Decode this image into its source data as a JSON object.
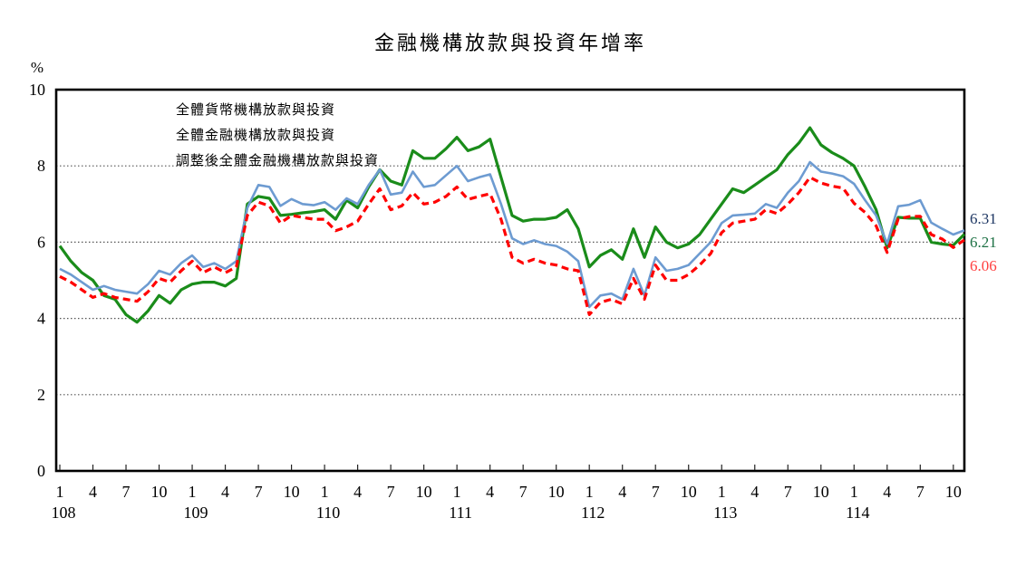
{
  "title": "金融機構放款與投資年增率",
  "y_axis": {
    "unit_label": "%",
    "tick_labels": [
      "10",
      "8",
      "6",
      "4",
      "2",
      "0"
    ],
    "min": 0,
    "max": 10,
    "gridlines_at": [
      2,
      4,
      6,
      8
    ]
  },
  "x_axis": {
    "month_tick_labels": [
      "1",
      "4",
      "7",
      "10"
    ],
    "year_labels": [
      "108",
      "109",
      "110",
      "111",
      "112",
      "113",
      "114"
    ],
    "months_in_last_year": 11
  },
  "legend": [
    {
      "label": "全體貨幣機構放款與投資",
      "color": "#1a8c1a",
      "dash": false
    },
    {
      "label": "全體金融機構放款與投資",
      "color": "#6d9bd1",
      "dash": false
    },
    {
      "label": "調整後全體金融機構放款與投資",
      "color": "#ff0000",
      "dash": true
    }
  ],
  "end_labels": [
    {
      "text": "6.31",
      "color": "#1f3864"
    },
    {
      "text": "6.21",
      "color": "#1e7145"
    },
    {
      "text": "6.06",
      "color": "#ff4040"
    }
  ],
  "chart_data": {
    "type": "line",
    "title": "金融機構放款與投資年增率",
    "ylabel": "%",
    "ylim": [
      0,
      10
    ],
    "x_start": "108/1",
    "x_end": "114/11",
    "frequency": "monthly",
    "legend_position": "top-left-inside",
    "grid": "horizontal-dotted",
    "series": [
      {
        "name": "全體貨幣機構放款與投資",
        "key": "monetary-institutions",
        "color": "#1a8c1a",
        "style": "solid",
        "last_value": 6.21,
        "values": [
          5.9,
          5.5,
          5.2,
          5.0,
          4.6,
          4.5,
          4.1,
          3.9,
          4.2,
          4.6,
          4.4,
          4.75,
          4.9,
          4.95,
          4.95,
          4.85,
          5.05,
          7.0,
          7.2,
          7.15,
          6.7,
          6.73,
          6.77,
          6.8,
          6.85,
          6.6,
          7.1,
          6.9,
          7.45,
          7.9,
          7.6,
          7.5,
          8.4,
          8.2,
          8.2,
          8.45,
          8.75,
          8.4,
          8.5,
          8.7,
          7.7,
          6.7,
          6.55,
          6.6,
          6.6,
          6.65,
          6.85,
          6.35,
          5.35,
          5.65,
          5.8,
          5.55,
          6.35,
          5.6,
          6.4,
          6.0,
          5.85,
          5.95,
          6.2,
          6.6,
          7.0,
          7.4,
          7.3,
          7.5,
          7.7,
          7.9,
          8.3,
          8.6,
          9.0,
          8.55,
          8.35,
          8.2,
          8.0,
          7.45,
          6.85,
          5.85,
          6.65,
          6.63,
          6.63,
          6.0,
          5.95,
          5.92,
          6.21
        ]
      },
      {
        "name": "全體金融機構放款與投資",
        "key": "financial-institutions",
        "color": "#6d9bd1",
        "style": "solid",
        "last_value": 6.31,
        "values": [
          5.3,
          5.15,
          4.95,
          4.75,
          4.85,
          4.75,
          4.7,
          4.65,
          4.9,
          5.25,
          5.15,
          5.45,
          5.65,
          5.35,
          5.45,
          5.3,
          5.5,
          6.9,
          7.5,
          7.45,
          6.95,
          7.13,
          7.0,
          6.97,
          7.05,
          6.85,
          7.15,
          7.0,
          7.5,
          7.9,
          7.25,
          7.3,
          7.85,
          7.45,
          7.5,
          7.75,
          8.0,
          7.6,
          7.7,
          7.78,
          7.0,
          6.1,
          5.95,
          6.05,
          5.95,
          5.9,
          5.75,
          5.5,
          4.3,
          4.6,
          4.65,
          4.5,
          5.3,
          4.6,
          5.6,
          5.25,
          5.3,
          5.4,
          5.7,
          6.0,
          6.5,
          6.7,
          6.72,
          6.75,
          7.0,
          6.9,
          7.3,
          7.6,
          8.1,
          7.85,
          7.8,
          7.73,
          7.53,
          7.1,
          6.7,
          5.96,
          6.94,
          6.98,
          7.1,
          6.51,
          6.35,
          6.2,
          6.31
        ]
      },
      {
        "name": "調整後全體金融機構放款與投資",
        "key": "adjusted-financial-institutions",
        "color": "#ff0000",
        "style": "dashed",
        "last_value": 6.06,
        "values": [
          5.1,
          4.95,
          4.75,
          4.55,
          4.65,
          4.55,
          4.5,
          4.45,
          4.7,
          5.05,
          4.95,
          5.25,
          5.5,
          5.2,
          5.35,
          5.2,
          5.35,
          6.7,
          7.05,
          6.95,
          6.5,
          6.7,
          6.65,
          6.6,
          6.6,
          6.3,
          6.4,
          6.55,
          7.0,
          7.4,
          6.85,
          6.95,
          7.3,
          7.0,
          7.05,
          7.2,
          7.45,
          7.12,
          7.2,
          7.27,
          6.6,
          5.6,
          5.45,
          5.55,
          5.45,
          5.4,
          5.3,
          5.25,
          4.1,
          4.42,
          4.5,
          4.38,
          5.05,
          4.5,
          5.4,
          5.0,
          5.0,
          5.15,
          5.4,
          5.7,
          6.25,
          6.5,
          6.55,
          6.6,
          6.85,
          6.75,
          7.0,
          7.3,
          7.7,
          7.55,
          7.47,
          7.42,
          7.02,
          6.78,
          6.43,
          5.73,
          6.61,
          6.67,
          6.68,
          6.2,
          6.08,
          5.86,
          6.06
        ]
      }
    ]
  }
}
